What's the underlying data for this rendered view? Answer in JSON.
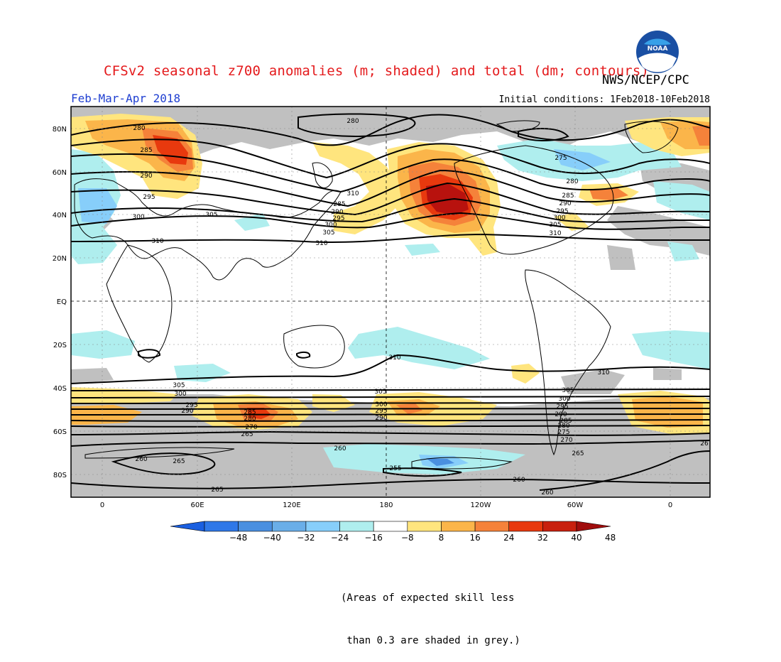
{
  "header": {
    "title": "CFSv2 seasonal z700 anomalies (m; shaded) and total (dm; contours)",
    "agency": "NWS/NCEP/CPC",
    "logo_text": "NOAA",
    "season": "Feb-Mar-Apr 2018",
    "initial_conditions": "Initial conditions: 1Feb2018-10Feb2018"
  },
  "map": {
    "lat_labels": [
      "80N",
      "60N",
      "40N",
      "20N",
      "EQ",
      "20S",
      "40S",
      "60S",
      "80S"
    ],
    "lon_labels": [
      "0",
      "60E",
      "120E",
      "180",
      "120W",
      "60W",
      "0"
    ],
    "contour_labels": [
      "280",
      "285",
      "290",
      "295",
      "300",
      "305",
      "310",
      "280",
      "285",
      "290",
      "295",
      "300",
      "305",
      "310",
      "275",
      "280",
      "285",
      "290",
      "295",
      "300",
      "305",
      "310",
      "310",
      "310",
      "310",
      "305",
      "300",
      "295",
      "290",
      "285",
      "280",
      "270",
      "265",
      "305",
      "300",
      "295",
      "290",
      "305",
      "300",
      "295",
      "290",
      "285",
      "280",
      "275",
      "270",
      "265",
      "260",
      "265",
      "260",
      "255",
      "260",
      "260",
      "265",
      "26"
    ],
    "colors": {
      "skill_grey": "#c0c0c0",
      "neg_light": "#afeeee",
      "neg_mid": "#87cefa",
      "neg_dark": "#4a8fe0",
      "pos_light": "#ffe57e",
      "pos_mid": "#fbb54a",
      "pos_orange": "#f5823a",
      "pos_red": "#e8390e",
      "pos_dark": "#b8120e"
    }
  },
  "colorbar": {
    "ticks": [
      "-48",
      "-40",
      "-32",
      "-24",
      "-16",
      "-8",
      "8",
      "16",
      "24",
      "32",
      "40",
      "48"
    ],
    "colors": [
      "#1a5fe0",
      "#2f78e8",
      "#4a8fe0",
      "#6aaee8",
      "#87cefa",
      "#afeeee",
      "#ffffff",
      "#ffe57e",
      "#fbb54a",
      "#f5823a",
      "#e8390e",
      "#c8200e",
      "#a00d0d"
    ]
  },
  "footnote": {
    "line1": "(Areas of expected skill less",
    "line2": " than 0.3 are shaded in grey.)"
  }
}
